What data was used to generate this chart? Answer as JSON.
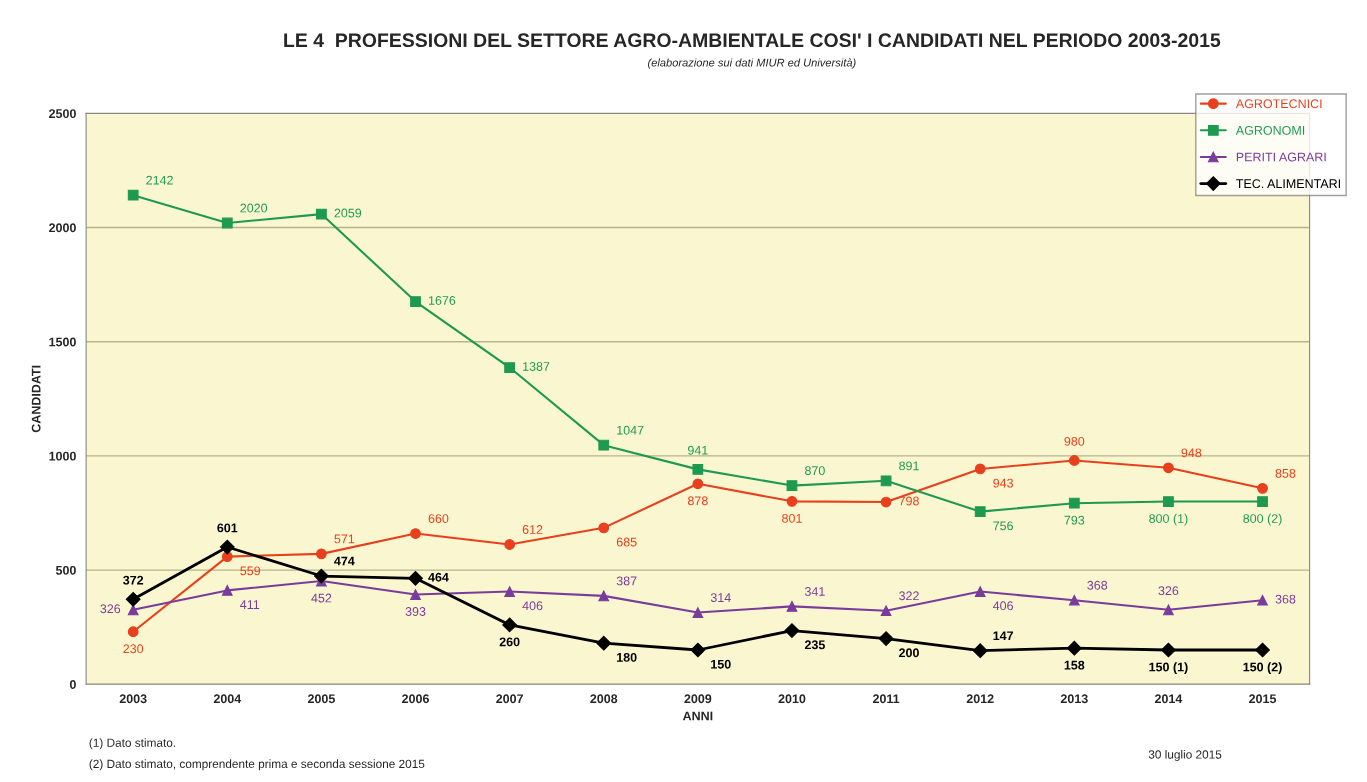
{
  "chart_data": {
    "type": "line",
    "title": "LE 4  PROFESSIONI DEL SETTORE AGRO-AMBIENTALE COSI' I CANDIDATI NEL PERIODO 2003-2015",
    "subtitle": "(elaborazione sui dati MIUR ed Università)",
    "xlabel": "ANNI",
    "ylabel": "CANDIDATI",
    "categories": [
      "2003",
      "2004",
      "2005",
      "2006",
      "2007",
      "2008",
      "2009",
      "2010",
      "2011",
      "2012",
      "2013",
      "2014",
      "2015"
    ],
    "series": [
      {
        "name": "AGROTECNICI",
        "color": "#e8401c",
        "marker": "circle",
        "values": [
          230,
          559,
          571,
          660,
          612,
          685,
          878,
          801,
          798,
          943,
          980,
          948,
          858
        ],
        "value_labels": [
          "230",
          "559",
          "571",
          "660",
          "612",
          "685",
          "878",
          "801",
          "798",
          "943",
          "980",
          "948",
          "858"
        ]
      },
      {
        "name": "AGRONOMI",
        "color": "#1e9a50",
        "marker": "square",
        "values": [
          2142,
          2020,
          2059,
          1676,
          1387,
          1047,
          941,
          870,
          891,
          756,
          793,
          800,
          800
        ],
        "value_labels": [
          "2142",
          "2020",
          "2059",
          "1676",
          "1387",
          "1047",
          "941",
          "870",
          "891",
          "756",
          "793",
          "800 (1)",
          "800 (2)"
        ]
      },
      {
        "name": "PERITI AGRARI",
        "color": "#7a3c9a",
        "marker": "triangle",
        "values": [
          326,
          411,
          452,
          393,
          406,
          387,
          314,
          341,
          322,
          406,
          368,
          326,
          368
        ],
        "value_labels": [
          "326",
          "411",
          "452",
          "393",
          "406",
          "387",
          "314",
          "341",
          "322",
          "406",
          "368",
          "326",
          "368"
        ]
      },
      {
        "name": "TEC. ALIMENTARI",
        "color": "#000000",
        "marker": "diamond",
        "values": [
          372,
          601,
          474,
          464,
          260,
          180,
          150,
          235,
          200,
          147,
          158,
          150,
          150
        ],
        "value_labels": [
          "372",
          "601",
          "474",
          "464",
          "260",
          "180",
          "150",
          "235",
          "200",
          "147",
          "158",
          "150 (1)",
          "150 (2)"
        ]
      }
    ],
    "ylim": [
      0,
      2500
    ],
    "yticks": [
      0,
      500,
      1000,
      1500,
      2000,
      2500
    ],
    "grid": "y",
    "legend": "top right",
    "annotations": [
      "(1) Dato stimato.",
      "(2) Dato stimato, comprendente prima e seconda sessione 2015",
      "30 luglio 2015"
    ]
  }
}
